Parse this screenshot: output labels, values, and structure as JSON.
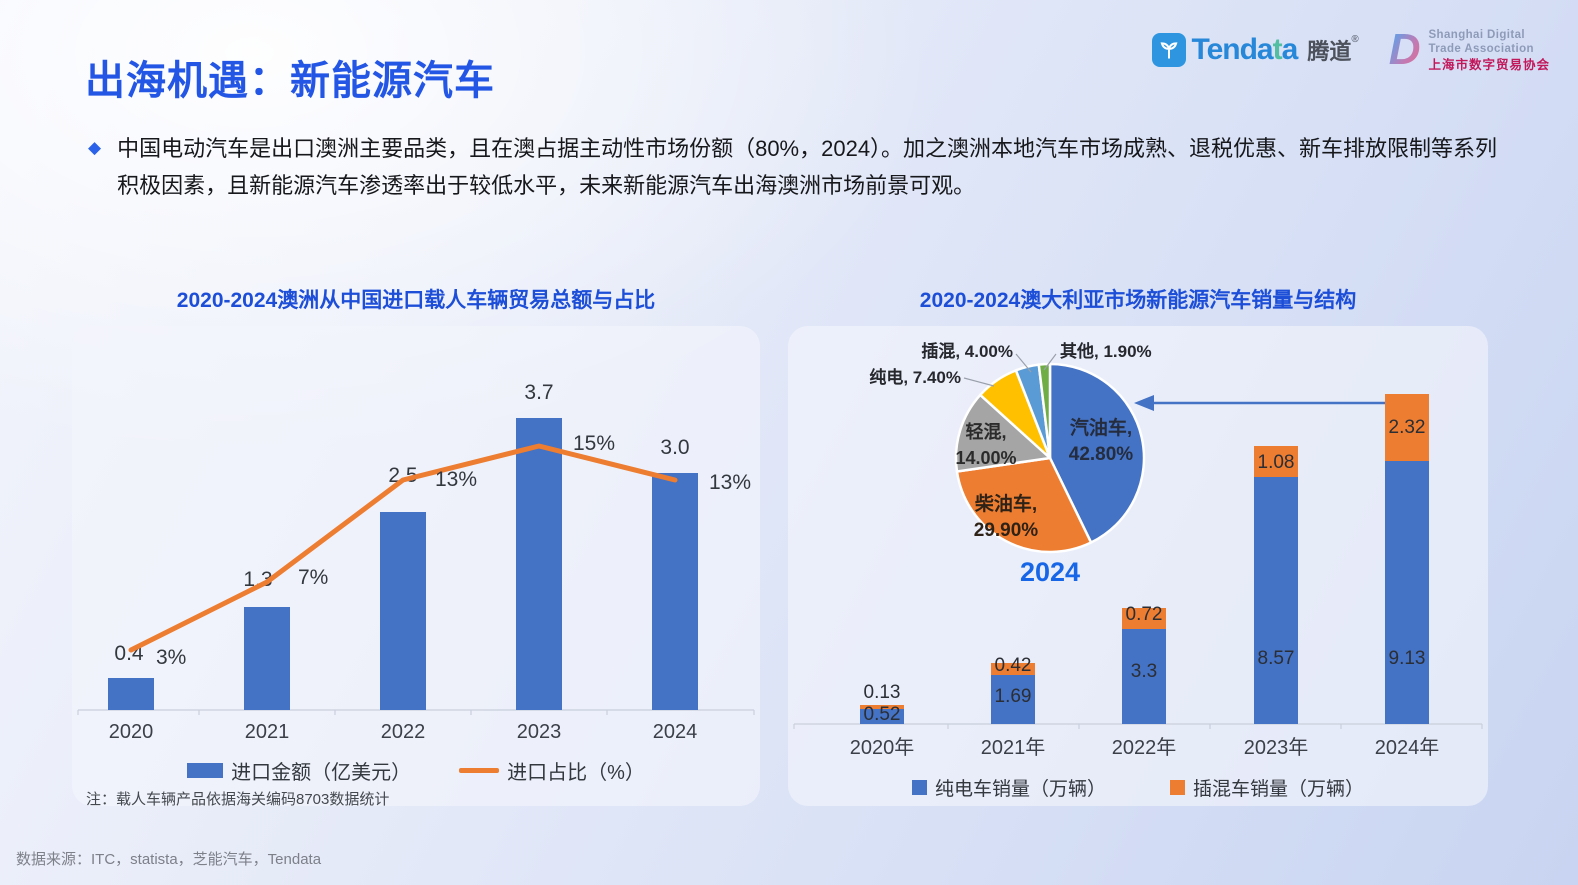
{
  "header": {
    "title": "出海机遇：新能源汽车",
    "tendata_logo": {
      "word_main": "Tenda",
      "word_teal": "t",
      "word_end": "a",
      "cn": "腾道",
      "reg": "®"
    },
    "sdta_logo": {
      "monogram": "D",
      "en_line1": "Shanghai Digital",
      "en_line2": "Trade Association",
      "cn_line": "上海市数字贸易协会"
    }
  },
  "bullet": {
    "marker": "◆",
    "text": "中国电动汽车是出口澳洲主要品类，且在澳占据主动性市场份额（80%，2024）。加之澳洲本地汽车市场成熟、退税优惠、新车排放限制等系列积极因素，且新能源汽车渗透率出于较低水平，未来新能源汽车出海澳洲市场前景可观。"
  },
  "footer": {
    "source": "数据来源：ITC，statista，芝能汽车，Tendata"
  },
  "colors": {
    "accent_blue": "#2356E4",
    "bar_blue": "#4472C4",
    "orange": "#ED7D31",
    "gray": "#A5A5A5",
    "yellow": "#FFC000",
    "light_blue": "#5B9BD5",
    "green": "#70AD47",
    "pie_year_blue": "#1866E8"
  },
  "chart_data": [
    {
      "id": "imports",
      "type": "bar",
      "title": "2020-2024澳洲从中国进口载人车辆贸易总额与占比",
      "categories": [
        "2020",
        "2021",
        "2022",
        "2023",
        "2024"
      ],
      "series": [
        {
          "name": "进口金额（亿美元）",
          "type": "bar",
          "color": "#4472C4",
          "values": [
            0.4,
            1.3,
            2.5,
            3.7,
            3.0
          ],
          "labels": [
            "0.4",
            "1.3",
            "2.5",
            "3.7",
            "3.0"
          ]
        },
        {
          "name": "进口占比（%）",
          "type": "line",
          "color": "#ED7D31",
          "values": [
            3,
            7,
            13,
            15,
            13
          ],
          "labels": [
            "3%",
            "7%",
            "13%",
            "15%",
            "13%"
          ]
        }
      ],
      "legend_position": "bottom",
      "grid": false,
      "note": "注：载人车辆产品依据海关编码8703数据统计"
    },
    {
      "id": "nev-sales",
      "type": "bar",
      "subtype": "stacked",
      "title": "2020-2024澳大利亚市场新能源汽车销量与结构",
      "categories": [
        "2020年",
        "2021年",
        "2022年",
        "2023年",
        "2024年"
      ],
      "series": [
        {
          "name": "纯电车销量（万辆）",
          "color": "#4472C4",
          "values": [
            0.52,
            1.69,
            3.3,
            8.57,
            9.13
          ],
          "labels": [
            "0.52",
            "1.69",
            "3.3",
            "8.57",
            "9.13"
          ]
        },
        {
          "name": "插混车销量（万辆）",
          "color": "#ED7D31",
          "values": [
            0.13,
            0.42,
            0.72,
            1.08,
            2.32
          ],
          "labels": [
            "0.13",
            "0.42",
            "0.72",
            "1.08",
            "2.32"
          ]
        }
      ],
      "legend_position": "bottom",
      "grid": false,
      "pie": {
        "type": "pie",
        "year_label": "2024",
        "slices": [
          {
            "name": "汽油车",
            "pct": 42.8,
            "color": "#4472C4",
            "label": "汽油车, 42.80%",
            "label_lines": [
              "汽油车,",
              "42.80%"
            ],
            "placement": "inside"
          },
          {
            "name": "柴油车",
            "pct": 29.9,
            "color": "#ED7D31",
            "label": "柴油车, 29.90%",
            "label_lines": [
              "柴油车,",
              "29.90%"
            ],
            "placement": "inside"
          },
          {
            "name": "轻混",
            "pct": 14.0,
            "color": "#A5A5A5",
            "label": "轻混, 14.00%",
            "label_lines": [
              "轻混,",
              "14.00%"
            ],
            "placement": "inside"
          },
          {
            "name": "纯电",
            "pct": 7.4,
            "color": "#FFC000",
            "label": "纯电, 7.40%",
            "placement": "outside"
          },
          {
            "name": "插混",
            "pct": 4.0,
            "color": "#5B9BD5",
            "label": "插混, 4.00%",
            "placement": "outside"
          },
          {
            "name": "其他",
            "pct": 1.9,
            "color": "#70AD47",
            "label": "其他, 1.90%",
            "placement": "outside"
          }
        ]
      }
    }
  ]
}
